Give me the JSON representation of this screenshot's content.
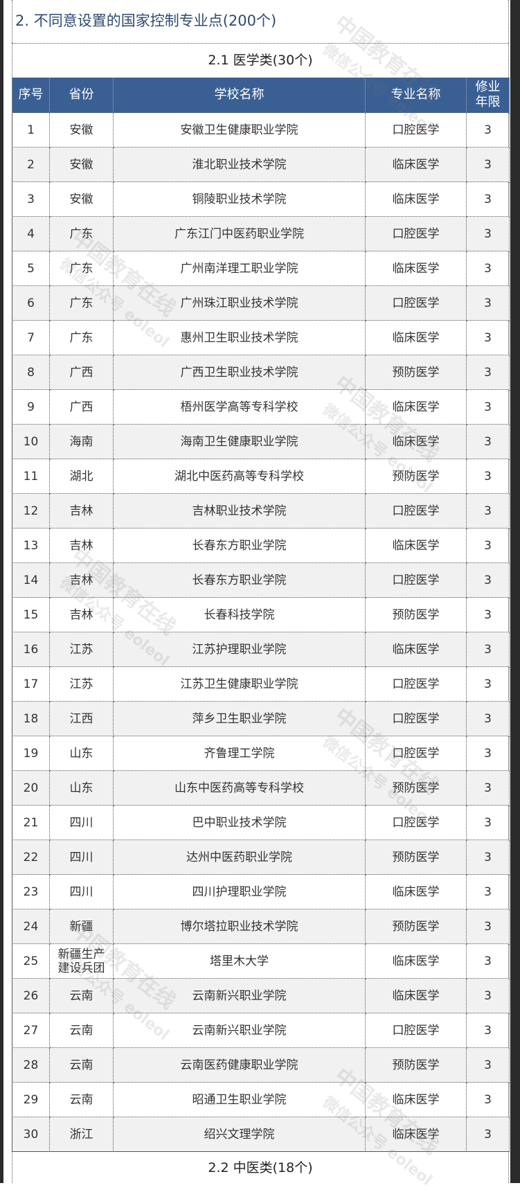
{
  "section_title": "2. 不同意设置的国家控制专业点(200个)",
  "subsection_1": "2.1 医学类(30个)",
  "subsection_2": "2.2 中医类(18个)",
  "colors": {
    "header_bg": "#3a6093",
    "title_text": "#2e4a72",
    "even_row": "#f1f1f1"
  },
  "watermark": [
    "中国教育在线",
    "微信公众号 eoleol"
  ],
  "table": {
    "headers": [
      "序号",
      "省份",
      "学校名称",
      "专业名称",
      "修业年限"
    ],
    "rows": [
      [
        "1",
        "安徽",
        "安徽卫生健康职业学院",
        "口腔医学",
        "3"
      ],
      [
        "2",
        "安徽",
        "淮北职业技术学院",
        "临床医学",
        "3"
      ],
      [
        "3",
        "安徽",
        "铜陵职业技术学院",
        "临床医学",
        "3"
      ],
      [
        "4",
        "广东",
        "广东江门中医药职业学院",
        "口腔医学",
        "3"
      ],
      [
        "5",
        "广东",
        "广州南洋理工职业学院",
        "临床医学",
        "3"
      ],
      [
        "6",
        "广东",
        "广州珠江职业技术学院",
        "口腔医学",
        "3"
      ],
      [
        "7",
        "广东",
        "惠州卫生职业技术学院",
        "临床医学",
        "3"
      ],
      [
        "8",
        "广西",
        "广西卫生职业技术学院",
        "预防医学",
        "3"
      ],
      [
        "9",
        "广西",
        "梧州医学高等专科学校",
        "临床医学",
        "3"
      ],
      [
        "10",
        "海南",
        "海南卫生健康职业学院",
        "临床医学",
        "3"
      ],
      [
        "11",
        "湖北",
        "湖北中医药高等专科学校",
        "预防医学",
        "3"
      ],
      [
        "12",
        "吉林",
        "吉林职业技术学院",
        "口腔医学",
        "3"
      ],
      [
        "13",
        "吉林",
        "长春东方职业学院",
        "临床医学",
        "3"
      ],
      [
        "14",
        "吉林",
        "长春东方职业学院",
        "口腔医学",
        "3"
      ],
      [
        "15",
        "吉林",
        "长春科技学院",
        "预防医学",
        "3"
      ],
      [
        "16",
        "江苏",
        "江苏护理职业学院",
        "临床医学",
        "3"
      ],
      [
        "17",
        "江苏",
        "江苏卫生健康职业学院",
        "口腔医学",
        "3"
      ],
      [
        "18",
        "江西",
        "萍乡卫生职业学院",
        "口腔医学",
        "3"
      ],
      [
        "19",
        "山东",
        "齐鲁理工学院",
        "口腔医学",
        "3"
      ],
      [
        "20",
        "山东",
        "山东中医药高等专科学校",
        "预防医学",
        "3"
      ],
      [
        "21",
        "四川",
        "巴中职业技术学院",
        "口腔医学",
        "3"
      ],
      [
        "22",
        "四川",
        "达州中医药职业学院",
        "预防医学",
        "3"
      ],
      [
        "23",
        "四川",
        "四川护理职业学院",
        "临床医学",
        "3"
      ],
      [
        "24",
        "新疆",
        "博尔塔拉职业技术学院",
        "预防医学",
        "3"
      ],
      [
        "25",
        "新疆生产建设兵团",
        "塔里木大学",
        "临床医学",
        "3"
      ],
      [
        "26",
        "云南",
        "云南新兴职业学院",
        "临床医学",
        "3"
      ],
      [
        "27",
        "云南",
        "云南新兴职业学院",
        "口腔医学",
        "3"
      ],
      [
        "28",
        "云南",
        "云南医药健康职业学院",
        "预防医学",
        "3"
      ],
      [
        "29",
        "云南",
        "昭通卫生职业学院",
        "临床医学",
        "3"
      ],
      [
        "30",
        "浙江",
        "绍兴文理学院",
        "临床医学",
        "3"
      ]
    ]
  }
}
